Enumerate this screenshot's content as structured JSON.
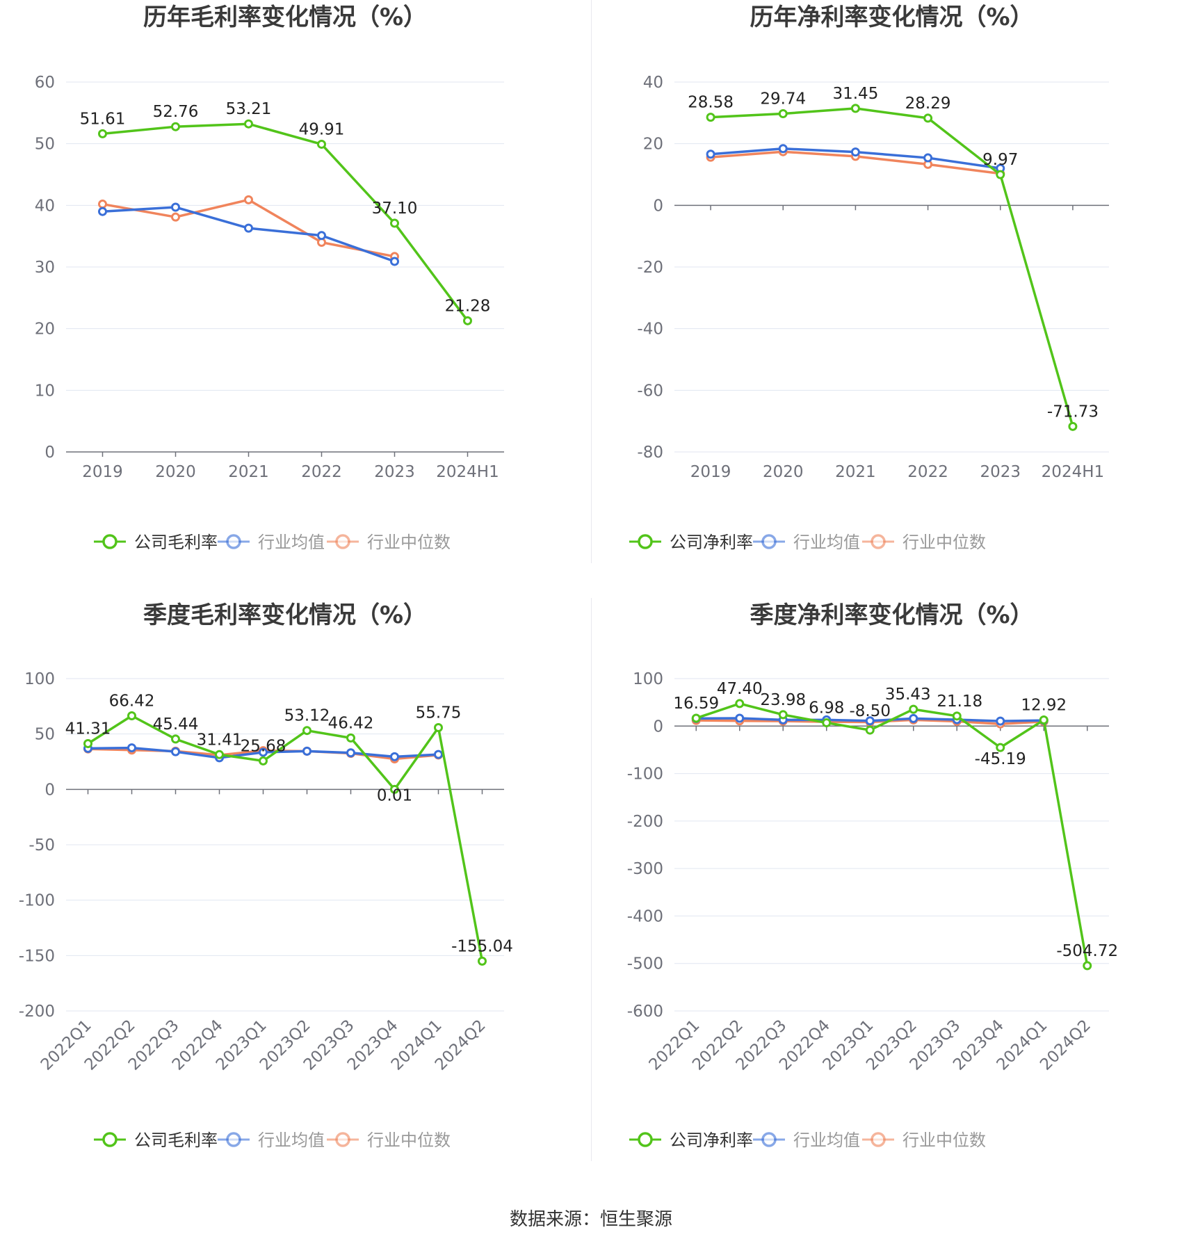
{
  "footer": "数据来源：恒生聚源",
  "colors": {
    "company": "#52c41a",
    "avg": "#3a6fd8",
    "median": "#f0845c"
  },
  "chart_data": [
    {
      "type": "line",
      "title": "历年毛利率变化情况（%）",
      "categories": [
        "2019",
        "2020",
        "2021",
        "2022",
        "2023",
        "2024H1"
      ],
      "ylim": [
        0,
        60
      ],
      "yticks": [
        0,
        10,
        20,
        30,
        40,
        50,
        60
      ],
      "grid": true,
      "legend_position": "bottom",
      "series": [
        {
          "name": "公司毛利率",
          "role": "company",
          "values": [
            51.61,
            52.76,
            53.21,
            49.91,
            37.1,
            21.28
          ],
          "labels": [
            "51.61",
            "52.76",
            "53.21",
            "49.91",
            "37.10",
            "21.28"
          ]
        },
        {
          "name": "行业均值",
          "role": "avg",
          "values": [
            39.0,
            39.7,
            36.3,
            35.1,
            30.9,
            null
          ]
        },
        {
          "name": "行业中位数",
          "role": "median",
          "values": [
            40.2,
            38.1,
            40.9,
            34.0,
            31.7,
            null
          ]
        }
      ]
    },
    {
      "type": "line",
      "title": "历年净利率变化情况（%）",
      "categories": [
        "2019",
        "2020",
        "2021",
        "2022",
        "2023",
        "2024H1"
      ],
      "ylim": [
        -80,
        40
      ],
      "yticks": [
        -80,
        -60,
        -40,
        -20,
        0,
        20,
        40
      ],
      "grid": true,
      "legend_position": "bottom",
      "series": [
        {
          "name": "公司净利率",
          "role": "company",
          "values": [
            28.58,
            29.74,
            31.45,
            28.29,
            9.97,
            -71.73
          ],
          "labels": [
            "28.58",
            "29.74",
            "31.45",
            "28.29",
            "9.97",
            "-71.73"
          ]
        },
        {
          "name": "行业均值",
          "role": "avg",
          "values": [
            16.6,
            18.4,
            17.3,
            15.4,
            12.0,
            null
          ]
        },
        {
          "name": "行业中位数",
          "role": "median",
          "values": [
            15.6,
            17.4,
            15.9,
            13.3,
            10.3,
            null
          ]
        }
      ]
    },
    {
      "type": "line",
      "title": "季度毛利率变化情况（%）",
      "categories": [
        "2022Q1",
        "2022Q2",
        "2022Q3",
        "2022Q4",
        "2023Q1",
        "2023Q2",
        "2023Q3",
        "2023Q4",
        "2024Q1",
        "2024Q2"
      ],
      "ylim": [
        -200,
        100
      ],
      "yticks": [
        -200,
        -150,
        -100,
        -50,
        0,
        50,
        100
      ],
      "grid": true,
      "legend_position": "bottom",
      "series": [
        {
          "name": "公司毛利率",
          "role": "company",
          "values": [
            41.31,
            66.42,
            45.44,
            31.41,
            25.68,
            53.12,
            46.42,
            0.01,
            55.75,
            -155.04
          ],
          "labels": [
            "41.31",
            "66.42",
            "45.44",
            "31.41",
            "25.68",
            "53.12",
            "46.42",
            "0.01",
            "55.75",
            "-155.04"
          ]
        },
        {
          "name": "行业均值",
          "role": "avg",
          "values": [
            37.0,
            37.5,
            34.0,
            28.5,
            33.5,
            34.5,
            33.0,
            29.5,
            31.5,
            null
          ]
        },
        {
          "name": "行业中位数",
          "role": "median",
          "values": [
            36.5,
            35.5,
            34.5,
            31.0,
            35.0,
            34.5,
            32.5,
            27.5,
            31.0,
            null
          ]
        }
      ]
    },
    {
      "type": "line",
      "title": "季度净利率变化情况（%）",
      "categories": [
        "2022Q1",
        "2022Q2",
        "2022Q3",
        "2022Q4",
        "2023Q1",
        "2023Q2",
        "2023Q3",
        "2023Q4",
        "2024Q1",
        "2024Q2"
      ],
      "ylim": [
        -600,
        100
      ],
      "yticks": [
        -600,
        -500,
        -400,
        -300,
        -200,
        -100,
        0,
        100
      ],
      "grid": true,
      "legend_position": "bottom",
      "series": [
        {
          "name": "公司净利率",
          "role": "company",
          "values": [
            16.59,
            47.4,
            23.98,
            6.98,
            -8.5,
            35.43,
            21.18,
            -45.19,
            12.92,
            -504.72
          ],
          "labels": [
            "16.59",
            "47.40",
            "23.98",
            "6.98",
            "-8.50",
            "35.43",
            "21.18",
            "-45.19",
            "12.92",
            "-504.72"
          ]
        },
        {
          "name": "行业均值",
          "role": "avg",
          "values": [
            16.0,
            16.5,
            13.0,
            13.0,
            11.0,
            16.0,
            13.5,
            10.5,
            12.0,
            null
          ]
        },
        {
          "name": "行业中位数",
          "role": "median",
          "values": [
            12.0,
            11.0,
            10.5,
            9.0,
            8.5,
            13.0,
            10.0,
            4.5,
            9.5,
            null
          ]
        }
      ]
    }
  ]
}
